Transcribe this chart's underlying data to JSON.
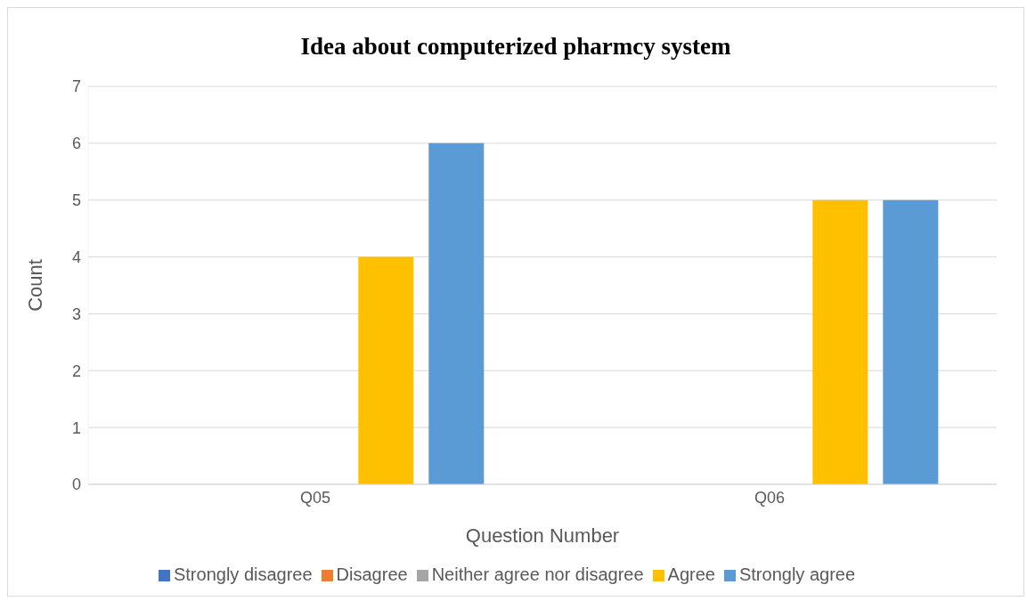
{
  "chart_data": {
    "type": "bar",
    "title": "Idea about computerized pharmcy system",
    "xlabel": "Question Number",
    "ylabel": "Count",
    "categories": [
      "Q05",
      "Q06"
    ],
    "series": [
      {
        "name": "Strongly disagree",
        "color": "#4472c4",
        "values": [
          0,
          0
        ]
      },
      {
        "name": "Disagree",
        "color": "#ed7d31",
        "values": [
          0,
          0
        ]
      },
      {
        "name": "Neither agree nor disagree",
        "color": "#a5a5a5",
        "values": [
          0,
          0
        ]
      },
      {
        "name": "Agree",
        "color": "#ffc000",
        "values": [
          4,
          5
        ]
      },
      {
        "name": "Strongly agree",
        "color": "#5b9bd5",
        "values": [
          6,
          5
        ]
      }
    ],
    "ylim": [
      0,
      7
    ],
    "yticks": [
      0,
      1,
      2,
      3,
      4,
      5,
      6,
      7
    ],
    "grid": "y",
    "legend": "bottom"
  }
}
